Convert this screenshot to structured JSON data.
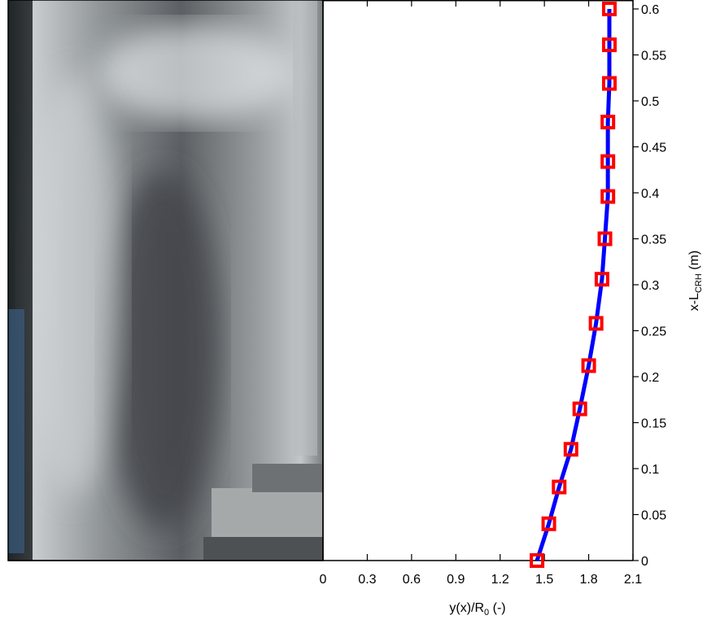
{
  "chart_data": {
    "type": "scatter",
    "xlabel": {
      "main": "y(x)/R",
      "sub": "0",
      "rest": " (-)"
    },
    "ylabel": {
      "main": "x-L",
      "sub": "CRH",
      "rest": " (m)"
    },
    "xlim": [
      0,
      2.1
    ],
    "xticks": [
      0,
      0.3,
      0.6,
      0.9,
      1.2,
      1.5,
      1.8,
      2.1
    ],
    "ylim": [
      0,
      0.6
    ],
    "yticks": [
      0,
      0.05,
      0.1,
      0.15,
      0.2,
      0.25,
      0.3,
      0.35,
      0.4,
      0.45,
      0.5,
      0.55,
      0.6
    ],
    "y_axis_side": "right",
    "series": [
      {
        "type": "line",
        "color": "#0000ff",
        "x": [
          1.45,
          1.53,
          1.6,
          1.68,
          1.74,
          1.8,
          1.85,
          1.89,
          1.91,
          1.93,
          1.93,
          1.93,
          1.94,
          1.94,
          1.94
        ],
        "values": [
          0,
          0.04,
          0.08,
          0.121,
          0.165,
          0.212,
          0.258,
          0.306,
          0.35,
          0.396,
          0.434,
          0.477,
          0.519,
          0.561,
          0.6
        ]
      },
      {
        "type": "scatter",
        "color": "#ff0000",
        "x": [
          1.45,
          1.53,
          1.6,
          1.68,
          1.74,
          1.8,
          1.85,
          1.89,
          1.91,
          1.93,
          1.93,
          1.93,
          1.94,
          1.94,
          1.94
        ],
        "values": [
          0,
          0.04,
          0.08,
          0.121,
          0.165,
          0.212,
          0.258,
          0.306,
          0.35,
          0.396,
          0.434,
          0.477,
          0.519,
          0.561,
          0.6
        ]
      }
    ]
  }
}
